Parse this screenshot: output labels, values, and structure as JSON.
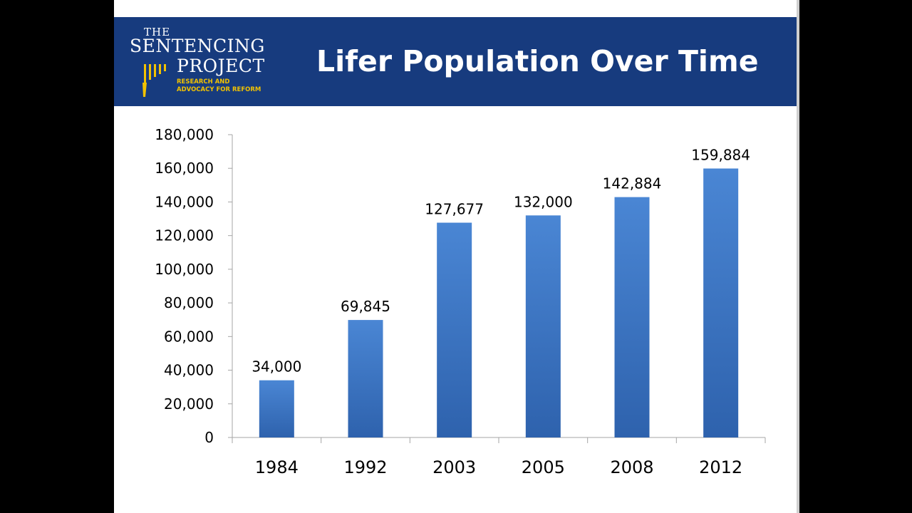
{
  "header": {
    "title": "Lifer Population Over Time",
    "background_color": "#173b7e"
  },
  "logo": {
    "line1": "THE",
    "line2": "SENTENCING",
    "line3": "PROJECT",
    "tagline1": "RESEARCH AND",
    "tagline2": "ADVOCACY FOR REFORM",
    "accent_color": "#f2c200"
  },
  "chart_data": {
    "type": "bar",
    "categories": [
      "1984",
      "1992",
      "2003",
      "2005",
      "2008",
      "2012"
    ],
    "values": [
      34000,
      69845,
      127677,
      132000,
      142884,
      159884
    ],
    "data_labels": [
      "34,000",
      "69,845",
      "127,677",
      "132,000",
      "142,884",
      "159,884"
    ],
    "yticks": [
      "0",
      "20,000",
      "40,000",
      "60,000",
      "80,000",
      "100,000",
      "120,000",
      "140,000",
      "160,000",
      "180,000"
    ],
    "ylim": [
      0,
      180000
    ],
    "grid": false,
    "legend": "none",
    "bar_color": "#3a75c4"
  }
}
